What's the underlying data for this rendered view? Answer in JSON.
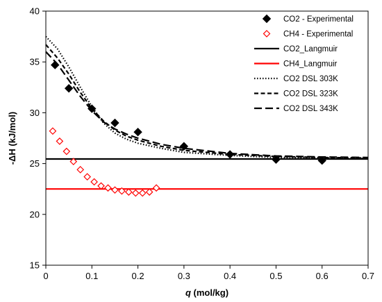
{
  "chart_data": {
    "type": "scatter",
    "xlabel_prefix": "q",
    "xlabel_rest": " (mol/kg)",
    "ylabel_prefix": "-ΔH",
    "ylabel_rest": " (kJ/mol)",
    "xlim": [
      0,
      0.7
    ],
    "ylim": [
      15,
      40
    ],
    "x_ticks": [
      "0",
      "0.1",
      "0.2",
      "0.3",
      "0.4",
      "0.5",
      "0.6",
      "0.7"
    ],
    "y_ticks": [
      "15",
      "20",
      "25",
      "30",
      "35",
      "40"
    ],
    "x_tick_values": [
      0,
      0.1,
      0.2,
      0.3,
      0.4,
      0.5,
      0.6,
      0.7
    ],
    "y_tick_values": [
      15,
      20,
      25,
      30,
      35,
      40
    ],
    "legend_position": "top-right",
    "colors": {
      "co2": "#000000",
      "ch4": "#ff0000"
    },
    "series": [
      {
        "name": "CO2 - Experimental",
        "kind": "scatter",
        "marker": "diamond-filled",
        "color": "#000000",
        "points": [
          [
            0.02,
            34.7
          ],
          [
            0.05,
            32.4
          ],
          [
            0.1,
            30.4
          ],
          [
            0.15,
            29.0
          ],
          [
            0.2,
            28.1
          ],
          [
            0.3,
            26.7
          ],
          [
            0.4,
            25.9
          ],
          [
            0.5,
            25.4
          ],
          [
            0.6,
            25.3
          ]
        ]
      },
      {
        "name": "CH4 - Experimental",
        "kind": "scatter",
        "marker": "diamond-open",
        "color": "#ff0000",
        "points": [
          [
            0.015,
            28.2
          ],
          [
            0.03,
            27.2
          ],
          [
            0.045,
            26.2
          ],
          [
            0.06,
            25.2
          ],
          [
            0.075,
            24.4
          ],
          [
            0.09,
            23.7
          ],
          [
            0.105,
            23.2
          ],
          [
            0.12,
            22.8
          ],
          [
            0.135,
            22.6
          ],
          [
            0.15,
            22.4
          ],
          [
            0.165,
            22.3
          ],
          [
            0.18,
            22.2
          ],
          [
            0.195,
            22.1
          ],
          [
            0.21,
            22.1
          ],
          [
            0.225,
            22.2
          ],
          [
            0.24,
            22.6
          ]
        ]
      },
      {
        "name": "CO2_Langmuir",
        "kind": "line",
        "dash": "solid",
        "color": "#000000",
        "points": [
          [
            0,
            25.45
          ],
          [
            0.7,
            25.45
          ]
        ]
      },
      {
        "name": "CH4_Langmuir",
        "kind": "line",
        "dash": "solid",
        "color": "#ff0000",
        "points": [
          [
            0,
            22.5
          ],
          [
            0.7,
            22.5
          ]
        ]
      },
      {
        "name": "CO2 DSL 303K",
        "kind": "line",
        "dash": "dotted",
        "color": "#000000",
        "points": [
          [
            0,
            37.5
          ],
          [
            0.025,
            36.3
          ],
          [
            0.05,
            34.5
          ],
          [
            0.075,
            32.5
          ],
          [
            0.1,
            30.6
          ],
          [
            0.125,
            29.0
          ],
          [
            0.15,
            28.0
          ],
          [
            0.175,
            27.4
          ],
          [
            0.2,
            27.0
          ],
          [
            0.25,
            26.5
          ],
          [
            0.3,
            26.1
          ],
          [
            0.4,
            25.8
          ],
          [
            0.5,
            25.6
          ],
          [
            0.6,
            25.55
          ],
          [
            0.7,
            25.5
          ]
        ]
      },
      {
        "name": "CO2 DSL 323K",
        "kind": "line",
        "dash": "dashed",
        "color": "#000000",
        "points": [
          [
            0,
            36.7
          ],
          [
            0.025,
            35.4
          ],
          [
            0.05,
            33.8
          ],
          [
            0.075,
            32.0
          ],
          [
            0.1,
            30.4
          ],
          [
            0.125,
            29.2
          ],
          [
            0.15,
            28.3
          ],
          [
            0.175,
            27.7
          ],
          [
            0.2,
            27.3
          ],
          [
            0.25,
            26.7
          ],
          [
            0.3,
            26.3
          ],
          [
            0.4,
            25.9
          ],
          [
            0.5,
            25.7
          ],
          [
            0.6,
            25.6
          ],
          [
            0.7,
            25.55
          ]
        ]
      },
      {
        "name": "CO2 DSL 343K",
        "kind": "line",
        "dash": "longdash",
        "color": "#000000",
        "points": [
          [
            0,
            36.0
          ],
          [
            0.025,
            34.8
          ],
          [
            0.05,
            33.2
          ],
          [
            0.075,
            31.6
          ],
          [
            0.1,
            30.2
          ],
          [
            0.125,
            29.1
          ],
          [
            0.15,
            28.4
          ],
          [
            0.175,
            27.9
          ],
          [
            0.2,
            27.5
          ],
          [
            0.25,
            26.9
          ],
          [
            0.3,
            26.5
          ],
          [
            0.4,
            26.0
          ],
          [
            0.5,
            25.75
          ],
          [
            0.6,
            25.65
          ],
          [
            0.7,
            25.6
          ]
        ]
      }
    ]
  }
}
